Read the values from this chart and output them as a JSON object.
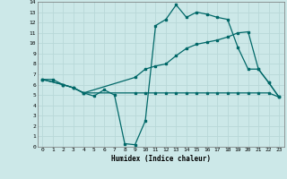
{
  "xlabel": "Humidex (Indice chaleur)",
  "xlim": [
    -0.5,
    23.5
  ],
  "ylim": [
    0,
    14
  ],
  "xticks": [
    0,
    1,
    2,
    3,
    4,
    5,
    6,
    7,
    8,
    9,
    10,
    11,
    12,
    13,
    14,
    15,
    16,
    17,
    18,
    19,
    20,
    21,
    22,
    23
  ],
  "yticks": [
    0,
    1,
    2,
    3,
    4,
    5,
    6,
    7,
    8,
    9,
    10,
    11,
    12,
    13,
    14
  ],
  "bg_color": "#cce8e8",
  "line_color": "#006868",
  "grid_color": "#b8d8d8",
  "lines": [
    {
      "x": [
        0,
        1,
        2,
        3,
        4,
        5,
        6,
        7,
        8,
        9,
        10,
        11,
        12,
        13,
        14,
        15,
        16,
        17,
        18,
        19,
        20,
        21,
        22,
        23
      ],
      "y": [
        6.5,
        6.5,
        6.0,
        5.7,
        5.2,
        4.9,
        5.5,
        5.0,
        0.3,
        0.2,
        2.5,
        11.7,
        12.3,
        13.7,
        12.5,
        13.0,
        12.8,
        12.5,
        12.3,
        9.6,
        7.5,
        7.5,
        6.2,
        4.8
      ]
    },
    {
      "x": [
        0,
        2,
        3,
        4,
        9,
        10,
        11,
        12,
        13,
        14,
        15,
        16,
        17,
        18,
        19,
        20,
        21,
        22,
        23
      ],
      "y": [
        6.5,
        6.0,
        5.7,
        5.2,
        5.2,
        5.2,
        5.2,
        5.2,
        5.2,
        5.2,
        5.2,
        5.2,
        5.2,
        5.2,
        5.2,
        5.2,
        5.2,
        5.2,
        4.8
      ]
    },
    {
      "x": [
        0,
        2,
        3,
        4,
        9,
        10,
        11,
        12,
        13,
        14,
        15,
        16,
        17,
        18,
        19,
        20,
        21,
        22,
        23
      ],
      "y": [
        6.5,
        6.0,
        5.7,
        5.2,
        6.7,
        7.5,
        7.8,
        8.0,
        8.8,
        9.5,
        9.9,
        10.1,
        10.3,
        10.6,
        11.0,
        11.1,
        7.5,
        6.2,
        4.8
      ]
    }
  ]
}
